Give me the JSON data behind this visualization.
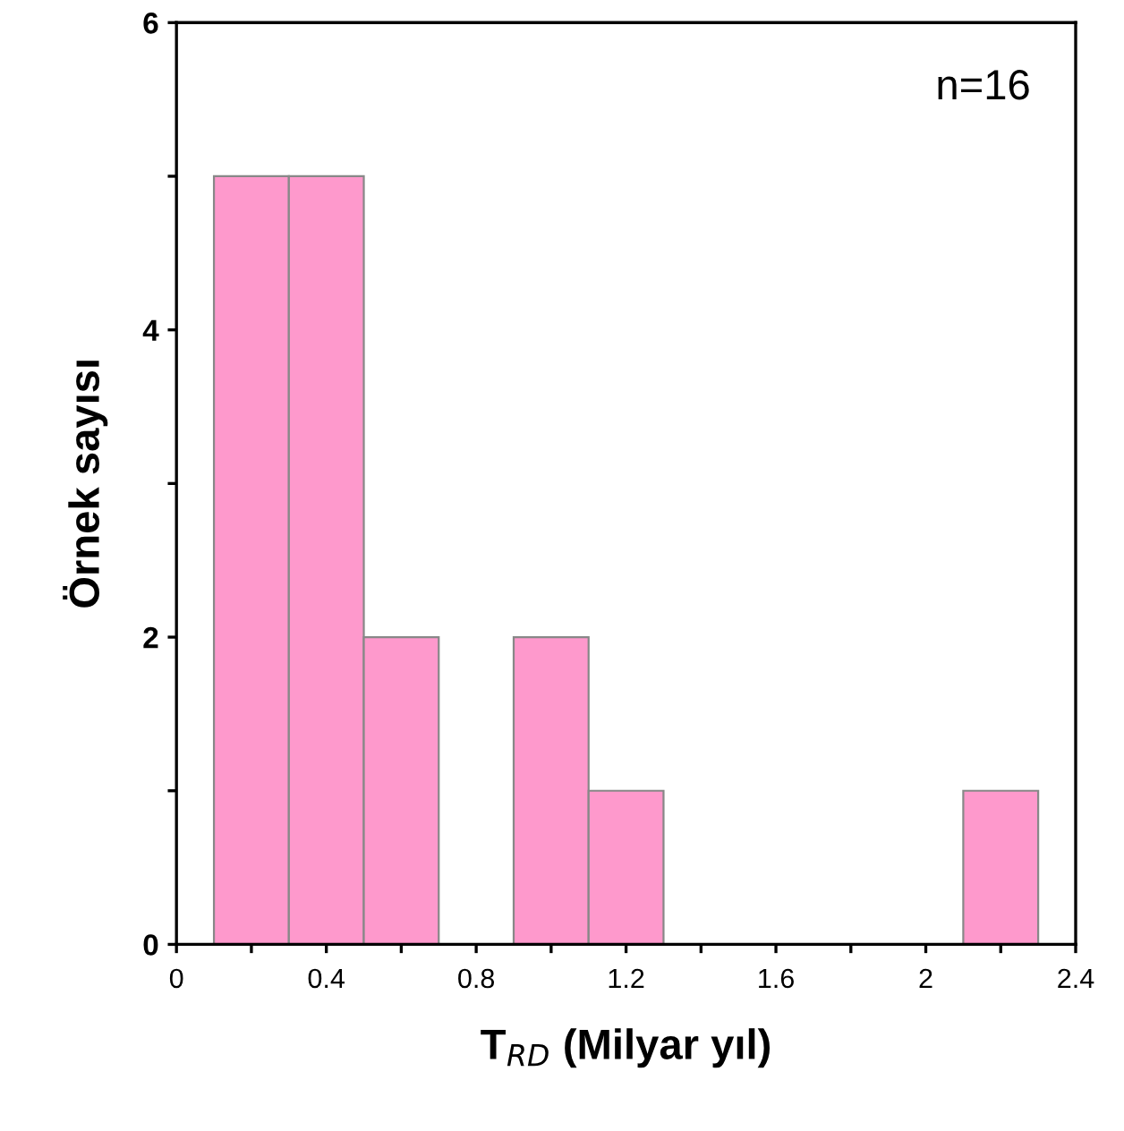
{
  "chart_data": {
    "type": "histogram",
    "bins": [
      0.1,
      0.3,
      0.5,
      0.7,
      0.9,
      1.1,
      1.3,
      1.5,
      1.7,
      1.9,
      2.1,
      2.3
    ],
    "values": [
      5,
      5,
      2,
      0,
      2,
      1,
      0,
      0,
      0,
      0,
      1
    ],
    "color": "#fe99cc",
    "xlabel": "T$_{RD}$ (Milyar yıl)",
    "ylabel": "Örnek sayısı",
    "annotations": [
      "n=16"
    ],
    "xlim": [
      0,
      2.4
    ],
    "ylim": [
      0,
      6
    ],
    "xticks": [
      0,
      {
        "value": 0.2,
        "label": null
      },
      0.4,
      {
        "value": 0.6,
        "label": null
      },
      0.8,
      {
        "value": 1.0,
        "label": null
      },
      1.2,
      {
        "value": 1.4,
        "label": null
      },
      1.6,
      {
        "value": 1.8,
        "label": null
      },
      2,
      {
        "value": 2.2,
        "label": null
      },
      2.4
    ],
    "yticks": [
      0,
      {
        "value": 1,
        "label": null
      },
      2,
      {
        "value": 3,
        "label": null
      },
      4,
      {
        "value": 5,
        "label": null
      },
      6
    ],
    "grid": false,
    "legend": false
  }
}
